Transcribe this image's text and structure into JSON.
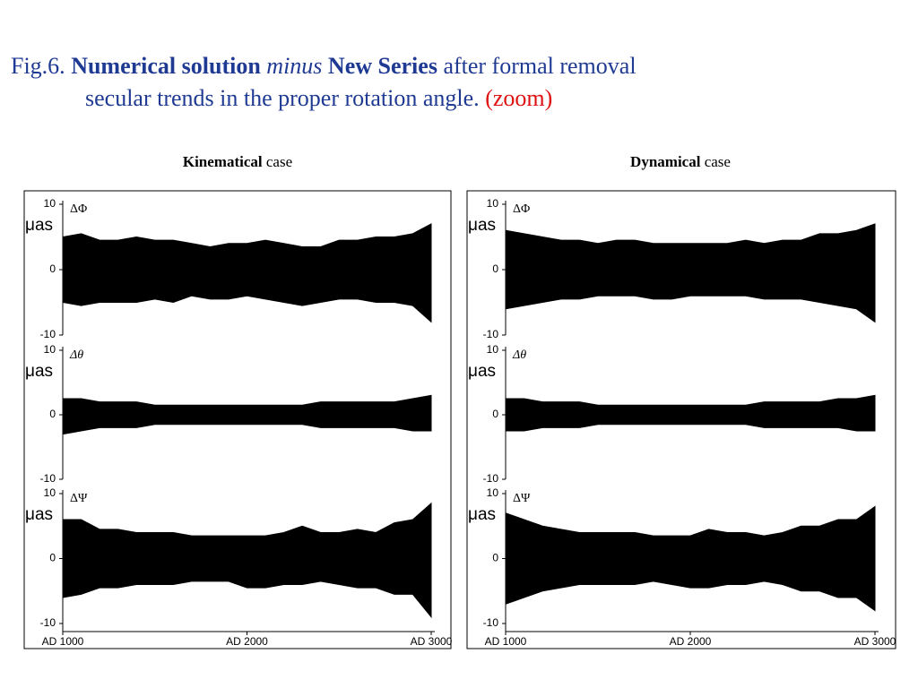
{
  "heading": {
    "prefix": "Fig.6.",
    "bold1": "Numerical solution",
    "italic": "minus",
    "bold2": "New Series",
    "rest1": "after formal removal",
    "line2": "secular trends in the proper rotation angle.",
    "zoom": "(zoom)"
  },
  "panels": [
    {
      "bold": "Kinematical",
      "rest": "case"
    },
    {
      "bold": "Dynamical",
      "rest": "case"
    }
  ],
  "chart_data": [
    {
      "type": "band",
      "label": "ΔΦ",
      "ylabel": "μas",
      "color": "#000000",
      "ylim": [
        -10,
        10
      ],
      "yticks": [
        -10,
        0,
        10
      ],
      "xlim": [
        1000,
        3000
      ],
      "x": [
        1000,
        1100,
        1200,
        1300,
        1400,
        1500,
        1600,
        1700,
        1800,
        1900,
        2000,
        2100,
        2200,
        2300,
        2400,
        2500,
        2600,
        2700,
        2800,
        2900,
        3000
      ],
      "upper": [
        5,
        5.5,
        4.5,
        4.5,
        5,
        4.5,
        4.5,
        4,
        3.5,
        4,
        4,
        4.5,
        4,
        3.5,
        3.5,
        4.5,
        4.5,
        5,
        5,
        5.5,
        7
      ],
      "lower": [
        -5,
        -5.5,
        -5,
        -5,
        -5,
        -4.5,
        -5,
        -4,
        -4.5,
        -4.5,
        -4,
        -4.5,
        -5,
        -5.5,
        -5,
        -4.5,
        -4.5,
        -5,
        -5,
        -5.5,
        -8
      ]
    },
    {
      "type": "band",
      "label": "Δθ",
      "ylabel": "μas",
      "color": "#000000",
      "ylim": [
        -10,
        10
      ],
      "yticks": [
        -10,
        0,
        10
      ],
      "xlim": [
        1000,
        3000
      ],
      "x": [
        1000,
        1100,
        1200,
        1300,
        1400,
        1500,
        1600,
        1700,
        1800,
        1900,
        2000,
        2100,
        2200,
        2300,
        2400,
        2500,
        2600,
        2700,
        2800,
        2900,
        3000
      ],
      "upper": [
        2.5,
        2.5,
        2,
        2,
        2,
        1.5,
        1.5,
        1.5,
        1.5,
        1.5,
        1.5,
        1.5,
        1.5,
        1.5,
        2,
        2,
        2,
        2,
        2,
        2.5,
        3
      ],
      "lower": [
        -3,
        -2.5,
        -2,
        -2,
        -2,
        -1.5,
        -1.5,
        -1.5,
        -1.5,
        -1.5,
        -1.5,
        -1.5,
        -1.5,
        -1.5,
        -2,
        -2,
        -2,
        -2,
        -2,
        -2.5,
        -2.5
      ]
    },
    {
      "type": "band",
      "label": "ΔΨ",
      "ylabel": "μas",
      "color": "#000000",
      "ylim": [
        -10,
        10
      ],
      "yticks": [
        -10,
        0,
        10
      ],
      "xlim": [
        1000,
        3000
      ],
      "xticks": [
        {
          "value": 1000,
          "label": "AD 1000"
        },
        {
          "value": 2000,
          "label": "AD 2000"
        },
        {
          "value": 3000,
          "label": "AD 3000"
        }
      ],
      "x": [
        1000,
        1100,
        1200,
        1300,
        1400,
        1500,
        1600,
        1700,
        1800,
        1900,
        2000,
        2100,
        2200,
        2300,
        2400,
        2500,
        2600,
        2700,
        2800,
        2900,
        3000
      ],
      "upper": [
        6,
        6,
        4.5,
        4.5,
        4,
        4,
        4,
        3.5,
        3.5,
        3.5,
        3.5,
        3.5,
        4,
        5,
        4,
        4,
        4.5,
        4,
        5.5,
        6,
        8.5
      ],
      "lower": [
        -6,
        -5.5,
        -4.5,
        -4.5,
        -4,
        -4,
        -4,
        -3.5,
        -3.5,
        -3.5,
        -4.5,
        -4.5,
        -4,
        -4,
        -3.5,
        -4,
        -4.5,
        -4.5,
        -5.5,
        -5.5,
        -9
      ]
    },
    {
      "type": "band",
      "label": "ΔΦ",
      "ylabel": "μas",
      "color": "#000000",
      "ylim": [
        -10,
        10
      ],
      "yticks": [
        -10,
        0,
        10
      ],
      "xlim": [
        1000,
        3000
      ],
      "x": [
        1000,
        1100,
        1200,
        1300,
        1400,
        1500,
        1600,
        1700,
        1800,
        1900,
        2000,
        2100,
        2200,
        2300,
        2400,
        2500,
        2600,
        2700,
        2800,
        2900,
        3000
      ],
      "upper": [
        6,
        5.5,
        5,
        4.5,
        4.5,
        4,
        4.5,
        4.5,
        4,
        4,
        4,
        4,
        4,
        4.5,
        4,
        4.5,
        4.5,
        5.5,
        5.5,
        6,
        7
      ],
      "lower": [
        -6,
        -5.5,
        -5,
        -4.5,
        -4.5,
        -4,
        -4,
        -4,
        -4.5,
        -4.5,
        -4,
        -4,
        -4,
        -4,
        -4.5,
        -4.5,
        -4.5,
        -5,
        -5.5,
        -6,
        -8
      ]
    },
    {
      "type": "band",
      "label": "Δθ",
      "ylabel": "μas",
      "color": "#000000",
      "ylim": [
        -10,
        10
      ],
      "yticks": [
        -10,
        0,
        10
      ],
      "xlim": [
        1000,
        3000
      ],
      "x": [
        1000,
        1100,
        1200,
        1300,
        1400,
        1500,
        1600,
        1700,
        1800,
        1900,
        2000,
        2100,
        2200,
        2300,
        2400,
        2500,
        2600,
        2700,
        2800,
        2900,
        3000
      ],
      "upper": [
        2.5,
        2.5,
        2,
        2,
        2,
        1.5,
        1.5,
        1.5,
        1.5,
        1.5,
        1.5,
        1.5,
        1.5,
        1.5,
        2,
        2,
        2,
        2,
        2.5,
        2.5,
        3
      ],
      "lower": [
        -2.5,
        -2.5,
        -2,
        -2,
        -2,
        -1.5,
        -1.5,
        -1.5,
        -1.5,
        -1.5,
        -1.5,
        -1.5,
        -1.5,
        -1.5,
        -2,
        -2,
        -2,
        -2,
        -2,
        -2.5,
        -2.5
      ]
    },
    {
      "type": "band",
      "label": "ΔΨ",
      "ylabel": "μas",
      "color": "#000000",
      "ylim": [
        -10,
        10
      ],
      "yticks": [
        -10,
        0,
        10
      ],
      "xlim": [
        1000,
        3000
      ],
      "xticks": [
        {
          "value": 1000,
          "label": "AD 1000"
        },
        {
          "value": 2000,
          "label": "AD 2000"
        },
        {
          "value": 3000,
          "label": "AD 3000"
        }
      ],
      "x": [
        1000,
        1100,
        1200,
        1300,
        1400,
        1500,
        1600,
        1700,
        1800,
        1900,
        2000,
        2100,
        2200,
        2300,
        2400,
        2500,
        2600,
        2700,
        2800,
        2900,
        3000
      ],
      "upper": [
        7,
        6,
        5,
        4.5,
        4,
        4,
        4,
        4,
        3.5,
        3.5,
        3.5,
        4.5,
        4,
        4,
        3.5,
        4,
        5,
        5,
        6,
        6,
        8
      ],
      "lower": [
        -7,
        -6,
        -5,
        -4.5,
        -4,
        -4,
        -4,
        -4,
        -3.5,
        -4,
        -4.5,
        -4.5,
        -4,
        -4,
        -3.5,
        -4,
        -5,
        -5,
        -6,
        -6,
        -8
      ]
    }
  ]
}
